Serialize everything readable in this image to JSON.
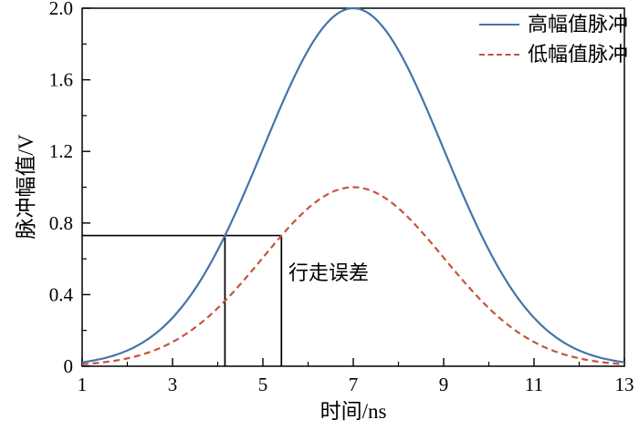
{
  "figure": {
    "background": "#ffffff"
  },
  "chart_data": {
    "type": "line",
    "title": "",
    "xlabel": "时间/ns",
    "ylabel": "脉冲幅值/V",
    "xlim": [
      1,
      13
    ],
    "ylim": [
      0,
      2.0
    ],
    "grid": false,
    "legend_position": "top-right",
    "x_tick_labels": [
      "1",
      "3",
      "5",
      "7",
      "9",
      "11",
      "13"
    ],
    "x_tick_values": [
      1,
      3,
      5,
      7,
      9,
      11,
      13
    ],
    "x_minor_ticks": [
      2,
      4,
      6,
      8,
      10,
      12
    ],
    "y_tick_labels": [
      "0",
      "0.4",
      "0.8",
      "1.2",
      "1.6",
      "2.0"
    ],
    "y_tick_values": [
      0,
      0.4,
      0.8,
      1.2,
      1.6,
      2.0
    ],
    "y_minor_ticks": [
      0.2,
      0.6,
      1.0,
      1.4,
      1.8
    ],
    "x": [
      1,
      1.5,
      2,
      2.5,
      3,
      3.5,
      4,
      4.5,
      5,
      5.5,
      6,
      6.5,
      7,
      7.5,
      8,
      8.5,
      9,
      9.5,
      10,
      10.5,
      11,
      11.5,
      12,
      12.5,
      13
    ],
    "series": [
      {
        "name": "高幅值脉冲",
        "color": "#4673a8",
        "style": "solid",
        "line_width": 2.2,
        "gaussian": {
          "amplitude": 2.0,
          "center": 7.0,
          "sigma": 2.0
        },
        "values": [
          0.022,
          0.046,
          0.088,
          0.159,
          0.271,
          0.432,
          0.649,
          0.916,
          1.213,
          1.51,
          1.765,
          1.938,
          2.0,
          1.938,
          1.765,
          1.51,
          1.213,
          0.916,
          0.649,
          0.432,
          0.271,
          0.159,
          0.088,
          0.046,
          0.022
        ]
      },
      {
        "name": "低幅值脉冲",
        "color": "#c8523d",
        "style": "dashed",
        "line_width": 2.2,
        "gaussian": {
          "amplitude": 1.0,
          "center": 7.0,
          "sigma": 2.0
        },
        "values": [
          0.011,
          0.023,
          0.044,
          0.08,
          0.135,
          0.216,
          0.325,
          0.458,
          0.607,
          0.755,
          0.882,
          0.969,
          1.0,
          0.969,
          0.882,
          0.755,
          0.607,
          0.458,
          0.325,
          0.216,
          0.135,
          0.08,
          0.044,
          0.023,
          0.011
        ]
      }
    ],
    "annotation": {
      "label": "行走误差",
      "threshold_v": 0.73,
      "x_cross_high": 4.16,
      "x_cross_low": 5.41,
      "color": "#000000"
    }
  }
}
